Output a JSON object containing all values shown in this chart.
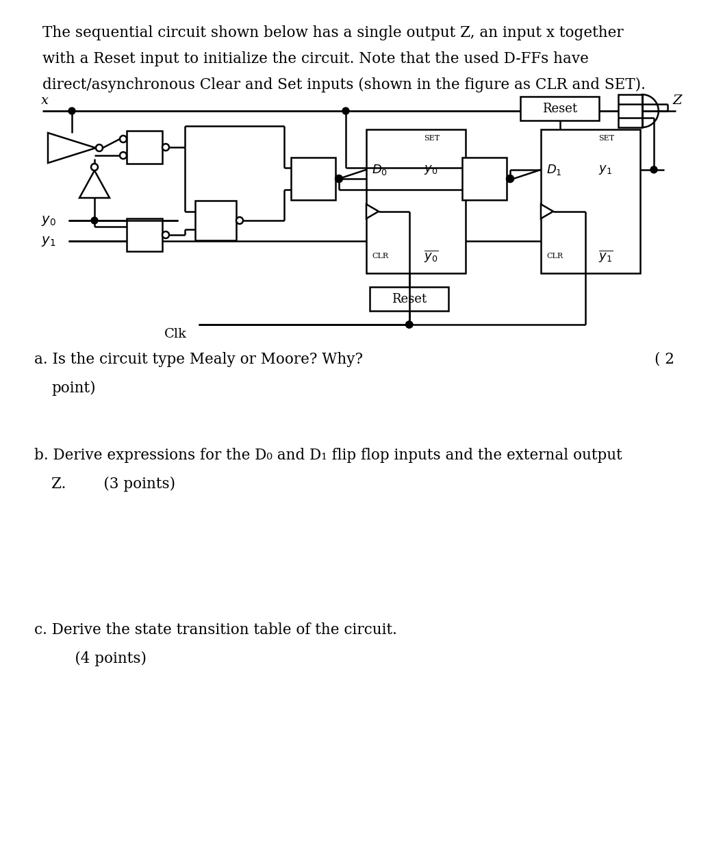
{
  "bg_color": "#ffffff",
  "text_color": "#000000",
  "title_line1": "The sequential circuit shown below has a single output Z, an input x together",
  "title_line2": "with a Reset input to initialize the circuit. Note that the used D-FFs have",
  "title_line3": "direct/asynchronous Clear and Set inputs (shown in the figure as CLR and SET).",
  "qa": "a. Is the circuit type Mealy or Moore? Why?",
  "qa_pts": "( 2",
  "qa_pts2": "point)",
  "qb1": "b. Derive expressions for the D₀ and D₁ flip flop inputs and the external output",
  "qb2": "Z.        (3 points)",
  "qc1": "c. Derive the state transition table of the circuit.",
  "qc2": "     (4 points)"
}
